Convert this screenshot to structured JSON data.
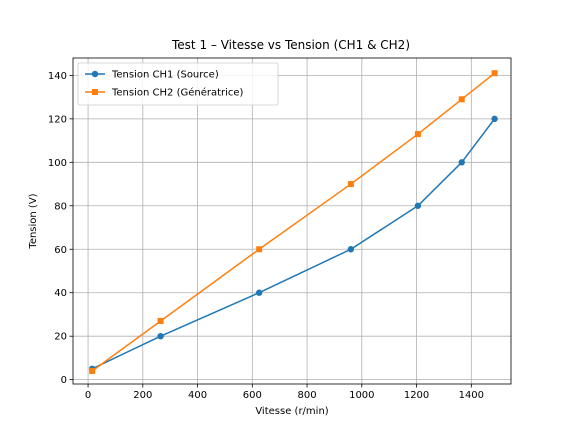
{
  "chart_data": {
    "type": "line",
    "title": "Test 1 – Vitesse vs Tension (CH1 & CH2)",
    "xlabel": "Vitesse (r/min)",
    "ylabel": "Tension (V)",
    "xlim": [
      -55,
      1545
    ],
    "ylim": [
      -2,
      148
    ],
    "xticks": [
      0,
      200,
      400,
      600,
      800,
      1000,
      1200,
      1400
    ],
    "yticks": [
      0,
      20,
      40,
      60,
      80,
      100,
      120,
      140
    ],
    "grid": true,
    "legend_position": "top-left",
    "series": [
      {
        "name": "Tension CH1 (Source)",
        "color": "#1f77b4",
        "marker": "circle",
        "x": [
          15,
          265,
          625,
          960,
          1205,
          1365,
          1485
        ],
        "y": [
          5,
          20,
          40,
          60,
          80,
          100,
          120
        ]
      },
      {
        "name": "Tension CH2 (Génératrice)",
        "color": "#ff7f0e",
        "marker": "square",
        "x": [
          15,
          265,
          625,
          960,
          1205,
          1365,
          1485
        ],
        "y": [
          4,
          27,
          60,
          90,
          113,
          129,
          141
        ]
      }
    ]
  }
}
